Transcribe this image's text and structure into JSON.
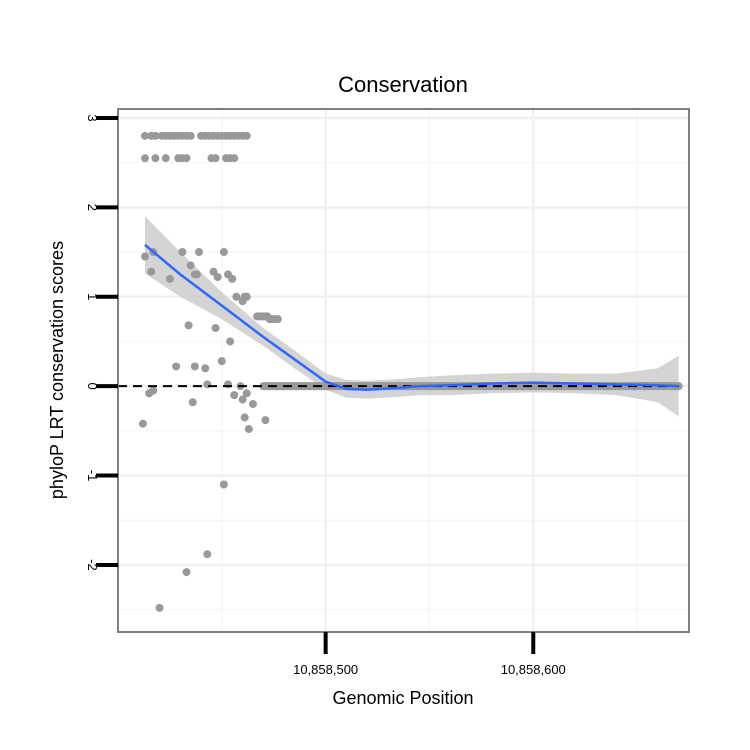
{
  "chart_data": {
    "type": "scatter",
    "title": "Conservation",
    "xlabel": "Genomic Position",
    "ylabel": "phyloP LRT conservation scores",
    "xlim": [
      10858400,
      10858675
    ],
    "ylim": [
      -2.75,
      3.1
    ],
    "x_ticks": [
      10858500,
      10858600
    ],
    "x_tick_labels": [
      "10,858,500",
      "10,858,600"
    ],
    "y_ticks": [
      -2,
      -1,
      0,
      1,
      2,
      3
    ],
    "y_tick_labels": [
      "-2",
      "-1",
      "0",
      "1",
      "2",
      "3"
    ],
    "grid": true,
    "reference_line": {
      "y": 0,
      "style": "dashed",
      "color": "#000000"
    },
    "colors": {
      "points": "#999999",
      "smooth": "#3366ff",
      "band": "#cccccc",
      "panel_border": "#808080"
    },
    "points": {
      "name": "phyloP score",
      "x": [
        10858413,
        10858416,
        10858418,
        10858421,
        10858423,
        10858425,
        10858427,
        10858429,
        10858431,
        10858433,
        10858435,
        10858440,
        10858442,
        10858444,
        10858446,
        10858448,
        10858450,
        10858452,
        10858454,
        10858456,
        10858458,
        10858460,
        10858462,
        10858413,
        10858418,
        10858423,
        10858429,
        10858431,
        10858433,
        10858445,
        10858447,
        10858452,
        10858454,
        10858456,
        10858413,
        10858416,
        10858417,
        10858425,
        10858431,
        10858435,
        10858437,
        10858438,
        10858439,
        10858446,
        10858448,
        10858451,
        10858453,
        10858455,
        10858457,
        10858460,
        10858461,
        10858462,
        10858467,
        10858468,
        10858469,
        10858470,
        10858471,
        10858472,
        10858473,
        10858474,
        10858475,
        10858476,
        10858477,
        10858412,
        10858415,
        10858417,
        10858428,
        10858434,
        10858436,
        10858437,
        10858442,
        10858443,
        10858447,
        10858450,
        10858453,
        10858454,
        10858456,
        10858459,
        10858460,
        10858462,
        10858463,
        10858465,
        10858471,
        10858420,
        10858433,
        10858443,
        10858451,
        10858461
      ],
      "y": [
        2.8,
        2.8,
        2.8,
        2.8,
        2.8,
        2.8,
        2.8,
        2.8,
        2.8,
        2.8,
        2.8,
        2.8,
        2.8,
        2.8,
        2.8,
        2.8,
        2.8,
        2.8,
        2.8,
        2.8,
        2.8,
        2.8,
        2.8,
        2.55,
        2.55,
        2.55,
        2.55,
        2.55,
        2.55,
        2.55,
        2.55,
        2.55,
        2.55,
        2.55,
        1.45,
        1.28,
        1.5,
        1.2,
        1.5,
        1.35,
        1.25,
        1.25,
        1.5,
        1.28,
        1.22,
        1.5,
        1.25,
        1.2,
        1.0,
        0.95,
        1.0,
        1.0,
        0.78,
        0.78,
        0.78,
        0.78,
        0.78,
        0.78,
        0.75,
        0.75,
        0.75,
        0.75,
        0.75,
        -0.42,
        -0.08,
        -0.05,
        0.22,
        0.68,
        -0.18,
        0.22,
        0.2,
        0.02,
        0.65,
        0.28,
        0.02,
        0.5,
        -0.1,
        0.0,
        -0.15,
        -0.08,
        -0.48,
        -0.2,
        -0.38,
        -2.48,
        -2.08,
        -1.88,
        -1.1,
        -0.35
      ]
    },
    "smooth_line": {
      "name": "loess fit",
      "x": [
        10858413,
        10858430,
        10858450,
        10858470,
        10858485,
        10858500,
        10858510,
        10858520,
        10858535,
        10858545,
        10858560,
        10858580,
        10858600,
        10858620,
        10858640,
        10858660,
        10858670
      ],
      "y": [
        1.58,
        1.25,
        0.9,
        0.55,
        0.3,
        0.05,
        -0.03,
        -0.04,
        -0.02,
        0.0,
        0.01,
        0.03,
        0.04,
        0.03,
        0.02,
        0.01,
        0.0
      ]
    },
    "confidence_band": {
      "x": [
        10858413,
        10858430,
        10858450,
        10858470,
        10858485,
        10858500,
        10858510,
        10858520,
        10858535,
        10858545,
        10858560,
        10858580,
        10858600,
        10858620,
        10858640,
        10858660,
        10858670
      ],
      "upper": [
        1.9,
        1.5,
        1.05,
        0.65,
        0.4,
        0.14,
        0.07,
        0.06,
        0.08,
        0.1,
        0.12,
        0.14,
        0.15,
        0.14,
        0.14,
        0.2,
        0.34
      ],
      "lower": [
        1.26,
        1.0,
        0.75,
        0.45,
        0.2,
        -0.04,
        -0.13,
        -0.14,
        -0.12,
        -0.1,
        -0.1,
        -0.08,
        -0.07,
        -0.08,
        -0.1,
        -0.18,
        -0.34
      ]
    },
    "zero_segment": {
      "x_start": 10858470,
      "x_end": 10858670,
      "y": 0
    }
  }
}
